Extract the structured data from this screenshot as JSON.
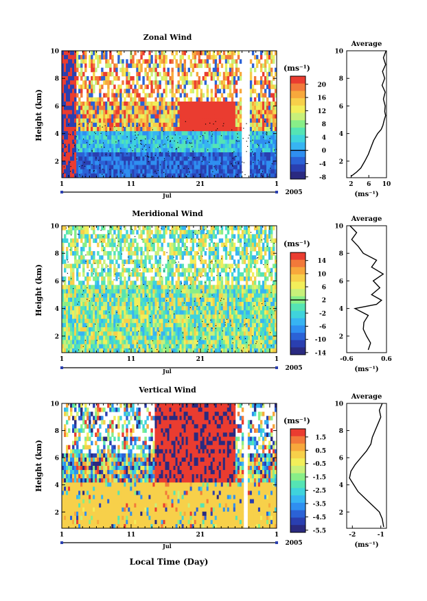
{
  "figure": {
    "xlabel": "Local Time (Day)",
    "month_label": "Jul",
    "year_label": "2005",
    "unit_label": "(ms⁻¹)",
    "profile_title": "Average",
    "profile_xlabel": "(ms⁻¹)",
    "ylabel": "Height (km)",
    "colormap": [
      "#2a2a80",
      "#2a3fb0",
      "#2b62d6",
      "#2f8ff0",
      "#37b4f2",
      "#3fd3dc",
      "#55e4b4",
      "#88ee88",
      "#c8f07a",
      "#f2ee5a",
      "#f7d04a",
      "#f7a83c",
      "#f2793a",
      "#ea3c30"
    ]
  },
  "chart_data": [
    {
      "type": "heatmap",
      "title": "Zonal Wind",
      "xlabel": "Local Time (Day)",
      "ylabel": "Height (km)",
      "x_ticklabels": [
        "1",
        "11",
        "21",
        "1"
      ],
      "y_ticklabels": [
        "2",
        "4",
        "6",
        "8",
        "10"
      ],
      "ylim": [
        0.8,
        10
      ],
      "colorbar": {
        "unit": "(ms⁻¹)",
        "ticks": [
          "20",
          "16",
          "12",
          "8",
          "4",
          "0",
          "-4",
          "-8"
        ],
        "contour_line_at": "0"
      },
      "profile": {
        "title": "Average",
        "x_ticklabels": [
          "2",
          "6",
          "10"
        ],
        "xlim": [
          1,
          10
        ],
        "heights": [
          0.9,
          1.2,
          1.5,
          2.0,
          2.5,
          3.0,
          3.5,
          4.0,
          4.3,
          4.6,
          5.0,
          5.3,
          5.6,
          6.0,
          6.5,
          7.0,
          7.5,
          8.0,
          8.5,
          9.0,
          9.5,
          10.0
        ],
        "values": [
          2.0,
          3.2,
          4.2,
          5.1,
          5.9,
          6.5,
          7.1,
          8.0,
          8.8,
          9.2,
          9.5,
          9.8,
          9.6,
          9.7,
          9.3,
          9.7,
          9.0,
          9.6,
          9.1,
          9.8,
          9.3,
          9.9
        ]
      }
    },
    {
      "type": "heatmap",
      "title": "Meridional Wind",
      "xlabel": "Local Time (Day)",
      "ylabel": "Height (km)",
      "x_ticklabels": [
        "1",
        "11",
        "21",
        "1"
      ],
      "y_ticklabels": [
        "2",
        "4",
        "6",
        "8",
        "10"
      ],
      "ylim": [
        0.8,
        10
      ],
      "colorbar": {
        "unit": "(ms⁻¹)",
        "ticks": [
          "14",
          "10",
          "6",
          "2",
          "-2",
          "-6",
          "-10",
          "-14"
        ],
        "contour_line_at": "2"
      },
      "profile": {
        "title": "Average",
        "x_ticklabels": [
          "-0.6",
          "0.6"
        ],
        "xlim": [
          -0.6,
          0.6
        ],
        "heights": [
          1.0,
          1.5,
          2.0,
          2.5,
          3.0,
          3.5,
          4.0,
          4.3,
          4.6,
          5.0,
          5.5,
          6.0,
          6.5,
          7.0,
          7.5,
          8.0,
          8.5,
          9.0,
          9.5,
          10.0
        ],
        "values": [
          0.05,
          0.12,
          0.0,
          -0.1,
          -0.08,
          0.05,
          -0.35,
          0.3,
          0.45,
          0.15,
          0.4,
          0.2,
          0.5,
          0.15,
          0.3,
          -0.1,
          -0.25,
          -0.45,
          -0.3,
          -0.5
        ]
      }
    },
    {
      "type": "heatmap",
      "title": "Vertical Wind",
      "xlabel": "Local Time (Day)",
      "ylabel": "Height (km)",
      "x_ticklabels": [
        "1",
        "11",
        "21",
        "1"
      ],
      "y_ticklabels": [
        "2",
        "4",
        "6",
        "8",
        "10"
      ],
      "ylim": [
        0.8,
        10
      ],
      "colorbar": {
        "unit": "(ms⁻¹)",
        "ticks": [
          "1.5",
          "0.5",
          "-0.5",
          "-1.5",
          "-2.5",
          "-3.5",
          "-4.5",
          "-5.5"
        ],
        "contour_line_at": null
      },
      "profile": {
        "title": "Average",
        "x_ticklabels": [
          "-2",
          "-1"
        ],
        "xlim": [
          -2.2,
          -0.8
        ],
        "heights": [
          0.9,
          1.5,
          2.0,
          2.5,
          3.0,
          3.5,
          4.0,
          4.5,
          5.0,
          5.5,
          6.0,
          6.5,
          7.0,
          7.5,
          8.0,
          8.5,
          9.0,
          9.5,
          10.0
        ],
        "values": [
          -0.9,
          -0.95,
          -1.05,
          -1.3,
          -1.55,
          -1.8,
          -1.95,
          -2.1,
          -2.05,
          -1.9,
          -1.7,
          -1.5,
          -1.35,
          -1.3,
          -1.2,
          -1.1,
          -1.0,
          -1.05,
          -0.95
        ]
      }
    }
  ]
}
